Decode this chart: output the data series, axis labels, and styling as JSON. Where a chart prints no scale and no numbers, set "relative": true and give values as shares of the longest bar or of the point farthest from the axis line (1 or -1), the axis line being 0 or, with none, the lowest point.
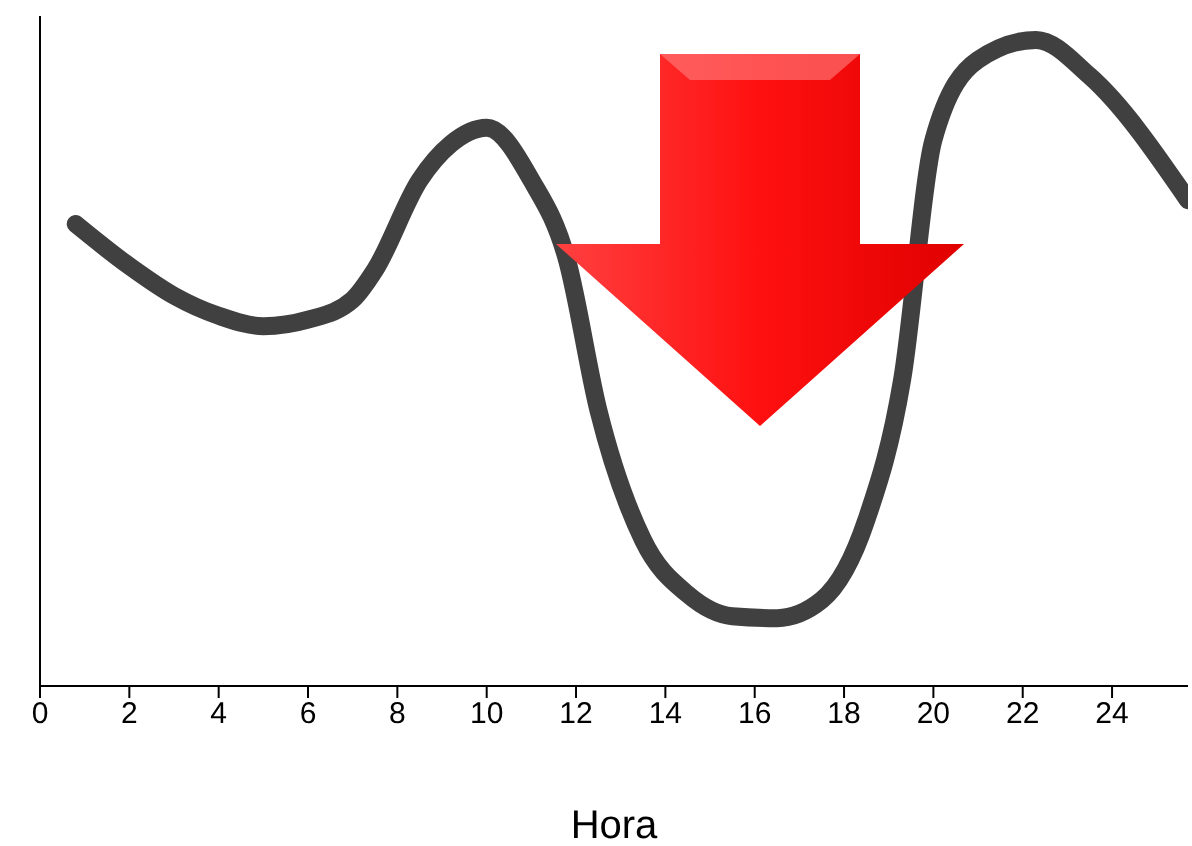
{
  "chart_data": {
    "type": "line",
    "xlabel": "Hora",
    "relative": true,
    "xlim": [
      0,
      25.7
    ],
    "xticks": [
      0,
      2,
      4,
      6,
      8,
      10,
      12,
      14,
      16,
      18,
      20,
      22,
      24
    ],
    "marker": "none",
    "line_style": "solid",
    "x": [
      0.8,
      2,
      3,
      4,
      5,
      6,
      7,
      7.5,
      8.5,
      9.2,
      10,
      11,
      11.8,
      12.5,
      13.5,
      14.5,
      15.5,
      16.5,
      17.5,
      18.5,
      19.3,
      20,
      21,
      22.3,
      23.5,
      25.7
    ],
    "series": [
      {
        "color": "#404040",
        "values": [
          0.715,
          0.65,
          0.604,
          0.573,
          0.557,
          0.567,
          0.598,
          0.644,
          0.783,
          0.839,
          0.864,
          0.783,
          0.659,
          0.427,
          0.226,
          0.142,
          0.108,
          0.105,
          0.133,
          0.257,
          0.474,
          0.845,
          0.969,
          1.0,
          0.944,
          0.752
        ]
      }
    ]
  }
}
